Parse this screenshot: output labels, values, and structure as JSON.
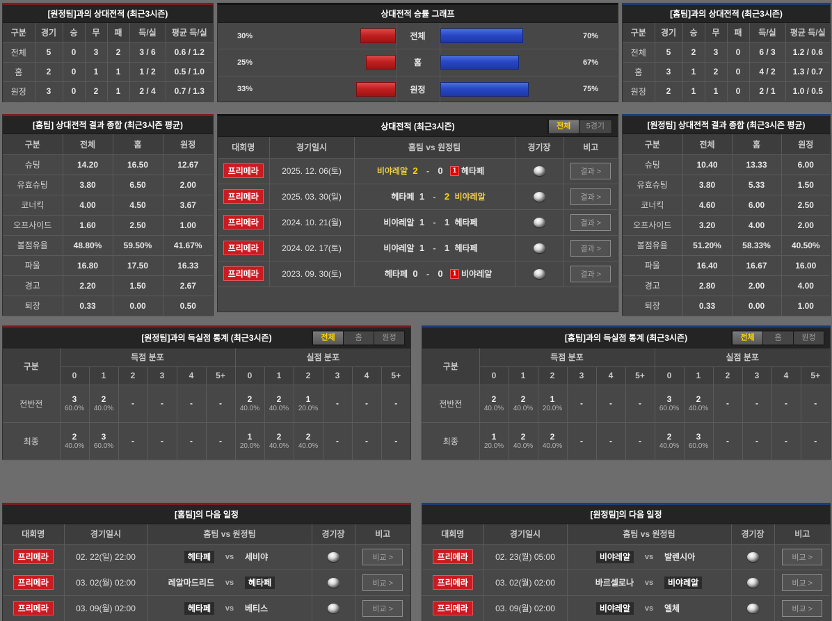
{
  "colors": {
    "accent_red": "#7d1d20",
    "accent_blue": "#1d3d7a",
    "bar_red": "#c12020",
    "bar_blue": "#2847c4",
    "tab_active_text": "#ffd400",
    "team_win_yellow": "#f0d048",
    "league_badge_red": "#cb1b21"
  },
  "away_h2h": {
    "title": "[원정팀]과의 상대전적 (최근3시즌)",
    "headers": [
      "구분",
      "경기",
      "승",
      "무",
      "패",
      "득/실",
      "평균 득/실"
    ],
    "rows": [
      [
        "전체",
        "5",
        "0",
        "3",
        "2",
        "3 / 6",
        "0.6 / 1.2"
      ],
      [
        "홈",
        "2",
        "0",
        "1",
        "1",
        "1 / 2",
        "0.5 / 1.0"
      ],
      [
        "원정",
        "3",
        "0",
        "2",
        "1",
        "2 / 4",
        "0.7 / 1.3"
      ]
    ]
  },
  "win_chart": {
    "title": "상대전적 승률 그래프",
    "type": "bar",
    "rows": [
      {
        "label": "전체",
        "left": "30%",
        "left_val": 30,
        "right": "70%",
        "right_val": 70
      },
      {
        "label": "홈",
        "left": "25%",
        "left_val": 25,
        "right": "67%",
        "right_val": 67
      },
      {
        "label": "원정",
        "left": "33%",
        "left_val": 33,
        "right": "75%",
        "right_val": 75
      }
    ]
  },
  "home_h2h": {
    "title": "[홈팀]과의 상대전적 (최근3시즌)",
    "headers": [
      "구분",
      "경기",
      "승",
      "무",
      "패",
      "득/실",
      "평균 득/실"
    ],
    "rows": [
      [
        "전체",
        "5",
        "2",
        "3",
        "0",
        "6 / 3",
        "1.2 / 0.6"
      ],
      [
        "홈",
        "3",
        "1",
        "2",
        "0",
        "4 / 2",
        "1.3 / 0.7"
      ],
      [
        "원정",
        "2",
        "1",
        "1",
        "0",
        "2 / 1",
        "1.0 / 0.5"
      ]
    ]
  },
  "home_summary": {
    "title": "[홈팀] 상대전적 결과 종합 (최근3시즌 평균)",
    "headers": [
      "구분",
      "전체",
      "홈",
      "원정"
    ],
    "rows": [
      [
        "슈팅",
        "14.20",
        "16.50",
        "12.67"
      ],
      [
        "유효슈팅",
        "3.80",
        "6.50",
        "2.00"
      ],
      [
        "코너킥",
        "4.00",
        "4.50",
        "3.67"
      ],
      [
        "오프사이드",
        "1.60",
        "2.50",
        "1.00"
      ],
      [
        "볼점유율",
        "48.80%",
        "59.50%",
        "41.67%"
      ],
      [
        "파울",
        "16.80",
        "17.50",
        "16.33"
      ],
      [
        "경고",
        "2.20",
        "1.50",
        "2.67"
      ],
      [
        "퇴장",
        "0.33",
        "0.00",
        "0.50"
      ]
    ]
  },
  "away_summary": {
    "title": "[원정팀] 상대전적 결과 종합 (최근3시즌 평균)",
    "headers": [
      "구분",
      "전체",
      "홈",
      "원정"
    ],
    "rows": [
      [
        "슈팅",
        "10.40",
        "13.33",
        "6.00"
      ],
      [
        "유효슈팅",
        "3.80",
        "5.33",
        "1.50"
      ],
      [
        "코너킥",
        "4.60",
        "6.00",
        "2.50"
      ],
      [
        "오프사이드",
        "3.20",
        "4.00",
        "2.00"
      ],
      [
        "볼점유율",
        "51.20%",
        "58.33%",
        "40.50%"
      ],
      [
        "파울",
        "16.40",
        "16.67",
        "16.00"
      ],
      [
        "경고",
        "2.80",
        "2.00",
        "4.00"
      ],
      [
        "퇴장",
        "0.33",
        "0.00",
        "1.00"
      ]
    ]
  },
  "h2h_list": {
    "title": "상대전적 (최근3시즌)",
    "tabs": [
      {
        "label": "전체",
        "active": true
      },
      {
        "label": "5경기",
        "active": false
      }
    ],
    "headers": [
      "대회명",
      "경기일시",
      "홈팀  vs  원정팀",
      "경기장",
      "비고"
    ],
    "result_label": "결과 >",
    "score_sep": "-",
    "rows": [
      {
        "league": "프리메라",
        "date": "2025. 12. 06(토)",
        "home": "비야레알",
        "hs": "2",
        "as": "0",
        "away": "헤타페",
        "hw": true,
        "hsw": true,
        "red_away": "1"
      },
      {
        "league": "프리메라",
        "date": "2025. 03. 30(일)",
        "home": "헤타페",
        "hs": "1",
        "as": "2",
        "away": "비야레알",
        "aw": true,
        "asw": true
      },
      {
        "league": "프리메라",
        "date": "2024. 10. 21(월)",
        "home": "비야레알",
        "hs": "1",
        "as": "1",
        "away": "헤타페"
      },
      {
        "league": "프리메라",
        "date": "2024. 02. 17(토)",
        "home": "비야레알",
        "hs": "1",
        "as": "1",
        "away": "헤타페"
      },
      {
        "league": "프리메라",
        "date": "2023. 09. 30(토)",
        "home": "헤타페",
        "hs": "0",
        "as": "0",
        "away": "비야레알",
        "red_away": "1"
      }
    ]
  },
  "away_goal_stats": {
    "title": "[원정팀]과의 득실점 통계 (최근3시즌)",
    "tabs": [
      {
        "label": "전체",
        "active": true
      },
      {
        "label": "홈",
        "active": false
      },
      {
        "label": "원정",
        "active": false
      }
    ],
    "col_label": "구분",
    "group_headers": [
      "득점 분포",
      "실점 분포"
    ],
    "score_cols": [
      "0",
      "1",
      "2",
      "3",
      "4",
      "5+"
    ],
    "rows": [
      {
        "label": "전반전",
        "cells": [
          [
            "3",
            "60.0%"
          ],
          [
            "2",
            "40.0%"
          ],
          [
            "-",
            ""
          ],
          [
            "-",
            ""
          ],
          [
            "-",
            ""
          ],
          [
            "-",
            ""
          ],
          [
            "2",
            "40.0%"
          ],
          [
            "2",
            "40.0%"
          ],
          [
            "1",
            "20.0%"
          ],
          [
            "-",
            ""
          ],
          [
            "-",
            ""
          ],
          [
            "-",
            ""
          ]
        ]
      },
      {
        "label": "최종",
        "cells": [
          [
            "2",
            "40.0%"
          ],
          [
            "3",
            "60.0%"
          ],
          [
            "-",
            ""
          ],
          [
            "-",
            ""
          ],
          [
            "-",
            ""
          ],
          [
            "-",
            ""
          ],
          [
            "1",
            "20.0%"
          ],
          [
            "2",
            "40.0%"
          ],
          [
            "2",
            "40.0%"
          ],
          [
            "-",
            ""
          ],
          [
            "-",
            ""
          ],
          [
            "-",
            ""
          ]
        ]
      }
    ]
  },
  "home_goal_stats": {
    "title": "[홈팀]과의 득실점 통계 (최근3시즌)",
    "tabs": [
      {
        "label": "전체",
        "active": true
      },
      {
        "label": "홈",
        "active": false
      },
      {
        "label": "원정",
        "active": false
      }
    ],
    "col_label": "구분",
    "group_headers": [
      "득점 분포",
      "실점 분포"
    ],
    "score_cols": [
      "0",
      "1",
      "2",
      "3",
      "4",
      "5+"
    ],
    "rows": [
      {
        "label": "전반전",
        "cells": [
          [
            "2",
            "40.0%"
          ],
          [
            "2",
            "40.0%"
          ],
          [
            "1",
            "20.0%"
          ],
          [
            "-",
            ""
          ],
          [
            "-",
            ""
          ],
          [
            "-",
            ""
          ],
          [
            "3",
            "60.0%"
          ],
          [
            "2",
            "40.0%"
          ],
          [
            "-",
            ""
          ],
          [
            "-",
            ""
          ],
          [
            "-",
            ""
          ],
          [
            "-",
            ""
          ]
        ]
      },
      {
        "label": "최종",
        "cells": [
          [
            "1",
            "20.0%"
          ],
          [
            "2",
            "40.0%"
          ],
          [
            "2",
            "40.0%"
          ],
          [
            "-",
            ""
          ],
          [
            "-",
            ""
          ],
          [
            "-",
            ""
          ],
          [
            "2",
            "40.0%"
          ],
          [
            "3",
            "60.0%"
          ],
          [
            "-",
            ""
          ],
          [
            "-",
            ""
          ],
          [
            "-",
            ""
          ],
          [
            "-",
            ""
          ]
        ]
      }
    ]
  },
  "home_schedule": {
    "title": "[홈팀]의 다음 일정",
    "headers": [
      "대회명",
      "경기일시",
      "홈팀  vs  원정팀",
      "경기장",
      "비고"
    ],
    "compare_label": "비교 >",
    "vs_label": "vs",
    "rows": [
      {
        "league": "프리메라",
        "date": "02. 22(일) 22:00",
        "home": "헤타페",
        "away": "세비야",
        "home_chip": true
      },
      {
        "league": "프리메라",
        "date": "03. 02(월) 02:00",
        "home": "레알마드리드",
        "away": "헤타페",
        "away_chip": true
      },
      {
        "league": "프리메라",
        "date": "03. 09(월) 02:00",
        "home": "헤타페",
        "away": "베티스",
        "home_chip": true
      }
    ]
  },
  "away_schedule": {
    "title": "[원정팀]의 다음 일정",
    "headers": [
      "대회명",
      "경기일시",
      "홈팀  vs  원정팀",
      "경기장",
      "비고"
    ],
    "compare_label": "비교 >",
    "vs_label": "vs",
    "rows": [
      {
        "league": "프리메라",
        "date": "02. 23(월) 05:00",
        "home": "비야레알",
        "away": "발렌시아",
        "home_chip": true
      },
      {
        "league": "프리메라",
        "date": "03. 02(월) 02:00",
        "home": "바르셀로나",
        "away": "비야레알",
        "away_chip": true
      },
      {
        "league": "프리메라",
        "date": "03. 09(월) 02:00",
        "home": "비야레알",
        "away": "엘체",
        "home_chip": true
      }
    ]
  }
}
